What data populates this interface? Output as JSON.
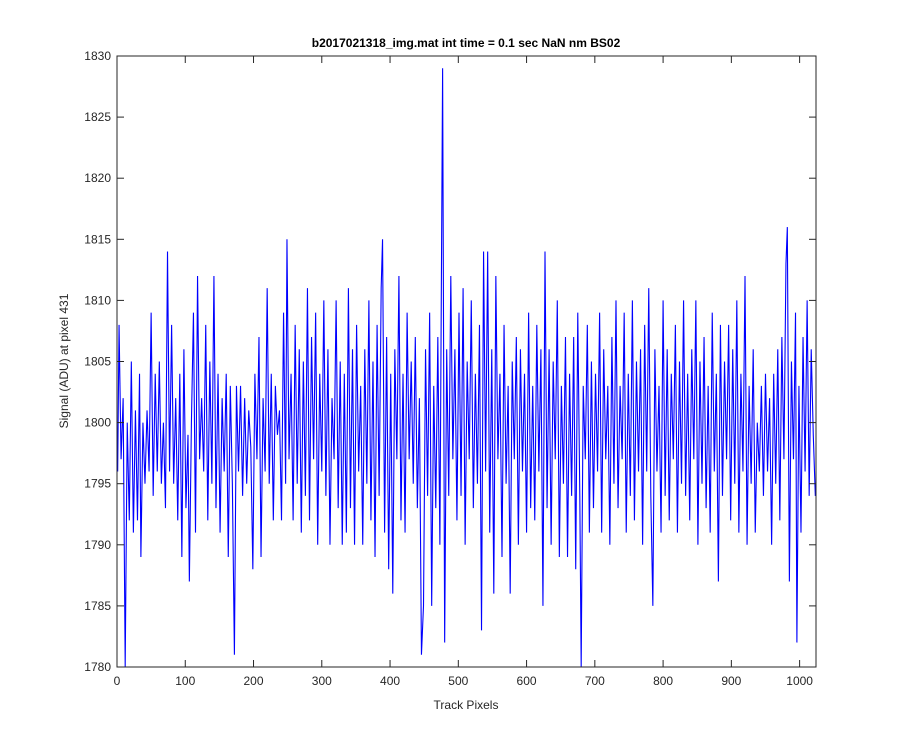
{
  "chart_data": {
    "type": "line",
    "title": "b2017021318_img.mat int time = 0.1 sec  NaN nm BS02",
    "x_label": "Track Pixels",
    "y_label": "Signal (ADU) at pixel 431",
    "xlim": [
      0,
      1024
    ],
    "ylim": [
      1780,
      1830
    ],
    "xticks": [
      0,
      100,
      200,
      300,
      400,
      500,
      600,
      700,
      800,
      900,
      1000
    ],
    "yticks": [
      1780,
      1785,
      1790,
      1795,
      1800,
      1805,
      1810,
      1815,
      1820,
      1825,
      1830
    ],
    "grid": false,
    "series": [
      {
        "color": "#0000ff",
        "x": [
          1,
          3,
          6,
          9,
          12,
          15,
          18,
          21,
          24,
          27,
          30,
          33,
          35,
          38,
          41,
          44,
          47,
          50,
          53,
          56,
          59,
          62,
          65,
          68,
          71,
          74,
          77,
          80,
          83,
          86,
          89,
          92,
          95,
          98,
          101,
          104,
          106,
          109,
          112,
          115,
          118,
          121,
          124,
          127,
          130,
          133,
          136,
          139,
          142,
          145,
          148,
          151,
          154,
          157,
          160,
          163,
          166,
          169,
          172,
          175,
          178,
          181,
          184,
          187,
          190,
          193,
          196,
          199,
          202,
          205,
          208,
          211,
          214,
          217,
          220,
          223,
          226,
          229,
          232,
          235,
          238,
          241,
          244,
          247,
          249,
          252,
          255,
          258,
          261,
          264,
          267,
          270,
          273,
          276,
          279,
          282,
          285,
          288,
          291,
          294,
          297,
          300,
          303,
          306,
          309,
          312,
          315,
          318,
          321,
          324,
          327,
          330,
          333,
          336,
          339,
          342,
          345,
          348,
          351,
          354,
          357,
          360,
          363,
          366,
          369,
          372,
          375,
          378,
          381,
          384,
          387,
          389,
          392,
          395,
          398,
          401,
          404,
          407,
          410,
          413,
          416,
          419,
          422,
          425,
          428,
          431,
          434,
          437,
          440,
          443,
          446,
          449,
          452,
          455,
          458,
          461,
          464,
          467,
          470,
          473,
          477,
          480,
          483,
          486,
          489,
          492,
          495,
          498,
          501,
          504,
          507,
          510,
          513,
          516,
          519,
          522,
          525,
          528,
          531,
          534,
          537,
          540,
          543,
          546,
          549,
          552,
          555,
          558,
          561,
          564,
          567,
          570,
          573,
          576,
          579,
          582,
          585,
          588,
          591,
          594,
          597,
          600,
          603,
          606,
          609,
          612,
          615,
          618,
          621,
          624,
          627,
          630,
          633,
          636,
          639,
          642,
          645,
          648,
          651,
          654,
          657,
          660,
          663,
          666,
          669,
          672,
          675,
          678,
          680,
          683,
          686,
          689,
          692,
          695,
          698,
          701,
          704,
          707,
          710,
          713,
          716,
          719,
          722,
          725,
          728,
          731,
          734,
          737,
          740,
          743,
          746,
          749,
          752,
          755,
          758,
          761,
          764,
          767,
          770,
          773,
          776,
          779,
          782,
          785,
          788,
          791,
          794,
          797,
          800,
          803,
          806,
          809,
          812,
          815,
          818,
          821,
          824,
          827,
          830,
          833,
          836,
          839,
          842,
          845,
          848,
          851,
          854,
          857,
          860,
          863,
          866,
          869,
          872,
          875,
          878,
          881,
          884,
          887,
          890,
          893,
          896,
          899,
          902,
          905,
          908,
          911,
          914,
          917,
          920,
          923,
          926,
          929,
          932,
          935,
          938,
          941,
          944,
          947,
          950,
          953,
          956,
          959,
          962,
          965,
          968,
          971,
          974,
          977,
          980,
          982,
          985,
          988,
          991,
          994,
          996,
          999,
          1002,
          1005,
          1008,
          1011,
          1014,
          1017,
          1020,
          1023
        ],
        "values": [
          1796,
          1808,
          1797,
          1802,
          1780,
          1800,
          1792,
          1805,
          1791,
          1801,
          1792,
          1804,
          1789,
          1800,
          1795,
          1801,
          1796,
          1809,
          1794,
          1804,
          1796,
          1805,
          1795,
          1800,
          1793,
          1814,
          1796,
          1808,
          1795,
          1802,
          1792,
          1804,
          1789,
          1806,
          1793,
          1799,
          1787,
          1800,
          1809,
          1791,
          1812,
          1797,
          1802,
          1796,
          1808,
          1792,
          1805,
          1795,
          1812,
          1793,
          1804,
          1791,
          1802,
          1796,
          1804,
          1789,
          1803,
          1795,
          1781,
          1803,
          1796,
          1803,
          1794,
          1802,
          1795,
          1801,
          1798,
          1788,
          1804,
          1797,
          1807,
          1789,
          1802,
          1796,
          1811,
          1795,
          1804,
          1792,
          1803,
          1799,
          1801,
          1792,
          1809,
          1795,
          1815,
          1797,
          1804,
          1792,
          1808,
          1795,
          1806,
          1791,
          1805,
          1794,
          1811,
          1792,
          1807,
          1797,
          1809,
          1790,
          1804,
          1796,
          1810,
          1794,
          1806,
          1790,
          1802,
          1797,
          1810,
          1793,
          1805,
          1790,
          1804,
          1791,
          1811,
          1793,
          1806,
          1790,
          1808,
          1796,
          1803,
          1790,
          1806,
          1795,
          1810,
          1792,
          1805,
          1789,
          1808,
          1794,
          1811,
          1815,
          1791,
          1807,
          1788,
          1804,
          1786,
          1806,
          1797,
          1812,
          1792,
          1804,
          1791,
          1809,
          1797,
          1805,
          1795,
          1807,
          1793,
          1802,
          1781,
          1785,
          1806,
          1794,
          1809,
          1785,
          1803,
          1793,
          1807,
          1790,
          1829,
          1782,
          1806,
          1794,
          1812,
          1797,
          1806,
          1792,
          1809,
          1794,
          1811,
          1790,
          1805,
          1797,
          1810,
          1793,
          1804,
          1795,
          1808,
          1783,
          1814,
          1796,
          1814,
          1791,
          1806,
          1786,
          1812,
          1797,
          1804,
          1789,
          1808,
          1795,
          1803,
          1786,
          1805,
          1797,
          1807,
          1790,
          1806,
          1796,
          1804,
          1791,
          1809,
          1793,
          1803,
          1792,
          1808,
          1796,
          1806,
          1785,
          1814,
          1793,
          1806,
          1790,
          1805,
          1797,
          1810,
          1789,
          1803,
          1795,
          1807,
          1789,
          1804,
          1794,
          1807,
          1788,
          1809,
          1794,
          1780,
          1803,
          1797,
          1808,
          1791,
          1805,
          1793,
          1804,
          1796,
          1809,
          1791,
          1806,
          1797,
          1803,
          1790,
          1807,
          1795,
          1810,
          1793,
          1803,
          1797,
          1809,
          1791,
          1804,
          1794,
          1810,
          1792,
          1805,
          1796,
          1806,
          1790,
          1808,
          1796,
          1811,
          1794,
          1785,
          1806,
          1796,
          1803,
          1791,
          1810,
          1794,
          1806,
          1792,
          1804,
          1797,
          1808,
          1791,
          1805,
          1795,
          1810,
          1794,
          1804,
          1792,
          1806,
          1797,
          1810,
          1790,
          1805,
          1795,
          1807,
          1793,
          1803,
          1791,
          1809,
          1796,
          1804,
          1787,
          1808,
          1794,
          1805,
          1797,
          1808,
          1792,
          1806,
          1795,
          1810,
          1791,
          1804,
          1796,
          1812,
          1790,
          1803,
          1795,
          1806,
          1791,
          1800,
          1796,
          1803,
          1794,
          1804,
          1796,
          1802,
          1790,
          1804,
          1795,
          1806,
          1792,
          1807,
          1797,
          1813,
          1816,
          1787,
          1805,
          1797,
          1809,
          1782,
          1803,
          1791,
          1807,
          1796,
          1810,
          1794,
          1806,
          1799,
          1794
        ]
      }
    ]
  }
}
